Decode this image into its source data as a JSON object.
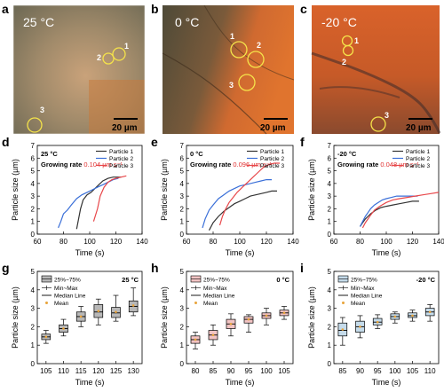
{
  "panels": {
    "a": {
      "letter": "a",
      "temp": "25 °C",
      "scalebar": "20 µm",
      "markers": [
        "1",
        "2",
        "3"
      ]
    },
    "b": {
      "letter": "b",
      "temp": "0 °C",
      "scalebar": "20 µm",
      "markers": [
        "1",
        "2",
        "3"
      ]
    },
    "c": {
      "letter": "c",
      "temp": "-20 °C",
      "scalebar": "20 µm",
      "markers": [
        "1",
        "2",
        "3"
      ]
    }
  },
  "colors": {
    "particle_1": "#333333",
    "particle_2": "#3a6fd8",
    "particle_3": "#e8474a",
    "rate_text": "#e03030",
    "box_g": "#b8b8b8",
    "box_h": "#f2c4c4",
    "box_i": "#c5dbea",
    "mean_dot": "#e8a33a"
  },
  "chart_data": [
    {
      "id": "d",
      "letter": "d",
      "type": "line",
      "corner_label": "25 °C",
      "rate_label": "Growing rate ",
      "rate_value": "0.104 µm s⁻¹",
      "xlabel": "Time (s)",
      "ylabel": "Particle size (µm)",
      "xlim": [
        60,
        140
      ],
      "ylim": [
        0,
        7
      ],
      "xticks": [
        60,
        80,
        100,
        120,
        140
      ],
      "yticks": [
        0,
        1,
        2,
        3,
        4,
        5,
        6,
        7
      ],
      "legend_position": "top-right",
      "series": [
        {
          "name": "Particle 1",
          "color": "#333333",
          "x": [
            90,
            93,
            95,
            98,
            101,
            104,
            107,
            110,
            114,
            118,
            121,
            124
          ],
          "y": [
            0.4,
            2.0,
            2.7,
            3.1,
            3.3,
            3.6,
            3.9,
            4.2,
            4.4,
            4.5,
            4.5,
            4.5
          ]
        },
        {
          "name": "Particle 2",
          "color": "#3a6fd8",
          "x": [
            76,
            78,
            80,
            83,
            86,
            90,
            94,
            98,
            102,
            106,
            110,
            114,
            118,
            122
          ],
          "y": [
            0.5,
            1.0,
            1.6,
            1.9,
            2.3,
            2.8,
            3.1,
            3.3,
            3.5,
            3.7,
            3.9,
            4.1,
            4.3,
            4.4
          ]
        },
        {
          "name": "Particle 3",
          "color": "#e8474a",
          "x": [
            103,
            106,
            108,
            111,
            114,
            117,
            120,
            124,
            128
          ],
          "y": [
            1.0,
            2.0,
            3.0,
            3.7,
            4.1,
            4.3,
            4.4,
            4.5,
            4.6
          ]
        }
      ]
    },
    {
      "id": "e",
      "letter": "e",
      "type": "line",
      "corner_label": "0 °C",
      "rate_label": "Growing rate ",
      "rate_value": "0.096 µm s⁻¹",
      "xlabel": "Time (s)",
      "ylabel": "Particle size (µm)",
      "xlim": [
        60,
        140
      ],
      "ylim": [
        0,
        7
      ],
      "xticks": [
        60,
        80,
        100,
        120,
        140
      ],
      "yticks": [
        0,
        1,
        2,
        3,
        4,
        5,
        6,
        7
      ],
      "legend_position": "top-right",
      "series": [
        {
          "name": "Particle 1",
          "color": "#333333",
          "x": [
            77,
            80,
            84,
            88,
            92,
            96,
            100,
            104,
            108,
            112,
            116,
            120,
            124,
            128
          ],
          "y": [
            0.3,
            0.9,
            1.4,
            1.8,
            2.1,
            2.4,
            2.6,
            2.8,
            3.0,
            3.1,
            3.2,
            3.3,
            3.4,
            3.4
          ]
        },
        {
          "name": "Particle 2",
          "color": "#3a6fd8",
          "x": [
            72,
            74,
            77,
            80,
            84,
            88,
            92,
            96,
            100,
            104,
            108,
            112,
            116,
            120,
            124
          ],
          "y": [
            0.5,
            1.2,
            1.9,
            2.3,
            2.8,
            3.1,
            3.4,
            3.6,
            3.8,
            3.9,
            4.0,
            4.1,
            4.2,
            4.3,
            4.3
          ]
        },
        {
          "name": "Particle 3",
          "color": "#e8474a",
          "x": [
            85,
            87,
            89,
            92,
            95,
            98,
            102,
            106,
            110,
            114,
            118,
            122,
            126,
            130
          ],
          "y": [
            0.7,
            1.4,
            1.9,
            2.5,
            2.9,
            3.3,
            3.7,
            4.1,
            4.5,
            4.9,
            5.3,
            5.5,
            5.6,
            5.6
          ]
        }
      ]
    },
    {
      "id": "f",
      "letter": "f",
      "type": "line",
      "corner_label": "-20 °C",
      "rate_label": "Growing rate ",
      "rate_value": "0.048 µm s⁻¹",
      "xlabel": "Time (s)",
      "ylabel": "Particle size (µm)",
      "xlim": [
        60,
        140
      ],
      "ylim": [
        0,
        7
      ],
      "xticks": [
        60,
        80,
        100,
        120,
        140
      ],
      "yticks": [
        0,
        1,
        2,
        3,
        4,
        5,
        6,
        7
      ],
      "legend_position": "top-right",
      "series": [
        {
          "name": "Particle 1",
          "color": "#333333",
          "x": [
            80,
            82,
            84,
            86,
            88,
            92,
            96,
            100,
            105,
            110,
            115,
            120,
            125
          ],
          "y": [
            0.6,
            0.9,
            1.2,
            1.4,
            1.6,
            1.9,
            2.1,
            2.2,
            2.3,
            2.4,
            2.5,
            2.6,
            2.6
          ]
        },
        {
          "name": "Particle 2",
          "color": "#3a6fd8",
          "x": [
            80,
            82,
            84,
            86,
            88,
            91,
            94,
            97,
            100,
            104,
            108,
            112,
            116,
            120,
            124
          ],
          "y": [
            0.6,
            1.0,
            1.4,
            1.7,
            2.0,
            2.3,
            2.5,
            2.7,
            2.8,
            2.9,
            3.0,
            3.0,
            3.0,
            3.0,
            3.0
          ]
        },
        {
          "name": "Particle 3",
          "color": "#e8474a",
          "x": [
            82,
            84,
            86,
            88,
            91,
            95,
            100,
            105,
            110,
            116,
            122,
            128,
            134,
            140
          ],
          "y": [
            0.5,
            0.9,
            1.2,
            1.5,
            1.9,
            2.2,
            2.5,
            2.7,
            2.8,
            2.9,
            3.0,
            3.1,
            3.2,
            3.3
          ]
        }
      ]
    },
    {
      "id": "g",
      "letter": "g",
      "type": "box",
      "corner_label": "25 °C",
      "legend": [
        "25%~75%",
        "Min~Max",
        "Median Line",
        "Mean"
      ],
      "xlabel": "Time (s)",
      "ylabel": "Particle size (µm)",
      "ylim": [
        0,
        5
      ],
      "yticks": [
        0,
        1,
        2,
        3,
        4,
        5
      ],
      "categories": [
        "105",
        "110",
        "115",
        "120",
        "125",
        "130"
      ],
      "box_color": "#b8b8b8",
      "boxes": [
        {
          "min": 1.1,
          "q1": 1.3,
          "median": 1.45,
          "q3": 1.6,
          "max": 1.8,
          "mean": 1.45
        },
        {
          "min": 1.5,
          "q1": 1.7,
          "median": 1.9,
          "q3": 2.1,
          "max": 2.4,
          "mean": 1.9
        },
        {
          "min": 2.0,
          "q1": 2.3,
          "median": 2.55,
          "q3": 2.8,
          "max": 3.1,
          "mean": 2.55
        },
        {
          "min": 2.1,
          "q1": 2.5,
          "median": 2.8,
          "q3": 3.2,
          "max": 3.5,
          "mean": 2.85
        },
        {
          "min": 2.3,
          "q1": 2.5,
          "median": 2.75,
          "q3": 3.05,
          "max": 3.7,
          "mean": 2.8
        },
        {
          "min": 2.6,
          "q1": 2.8,
          "median": 3.1,
          "q3": 3.4,
          "max": 4.1,
          "mean": 3.15
        }
      ]
    },
    {
      "id": "h",
      "letter": "h",
      "type": "box",
      "corner_label": "0 °C",
      "legend": [
        "25%~75%",
        "Min~Max",
        "Median Line",
        "Mean"
      ],
      "xlabel": "Time (s)",
      "ylabel": "Particle size (µm)",
      "ylim": [
        0,
        5
      ],
      "yticks": [
        0,
        1,
        2,
        3,
        4,
        5
      ],
      "categories": [
        "80",
        "85",
        "90",
        "95",
        "100",
        "105"
      ],
      "box_color": "#f2c4c4",
      "boxes": [
        {
          "min": 0.8,
          "q1": 1.1,
          "median": 1.3,
          "q3": 1.5,
          "max": 1.7,
          "mean": 1.3
        },
        {
          "min": 1.0,
          "q1": 1.3,
          "median": 1.55,
          "q3": 1.8,
          "max": 2.1,
          "mean": 1.55
        },
        {
          "min": 1.5,
          "q1": 1.9,
          "median": 2.15,
          "q3": 2.4,
          "max": 2.7,
          "mean": 2.15
        },
        {
          "min": 1.7,
          "q1": 2.2,
          "median": 2.4,
          "q3": 2.55,
          "max": 2.65,
          "mean": 2.4
        },
        {
          "min": 2.1,
          "q1": 2.45,
          "median": 2.6,
          "q3": 2.75,
          "max": 3.0,
          "mean": 2.6
        },
        {
          "min": 2.4,
          "q1": 2.6,
          "median": 2.75,
          "q3": 2.9,
          "max": 3.1,
          "mean": 2.75
        }
      ]
    },
    {
      "id": "i",
      "letter": "i",
      "type": "box",
      "corner_label": "-20 °C",
      "legend": [
        "25%~75%",
        "Min~Max",
        "Median Line",
        "Mean"
      ],
      "xlabel": "Time (s)",
      "ylabel": "Particle size (µm)",
      "ylim": [
        0,
        5
      ],
      "yticks": [
        0,
        1,
        2,
        3,
        4,
        5
      ],
      "categories": [
        "85",
        "90",
        "95",
        "100",
        "105",
        "110"
      ],
      "box_color": "#c5dbea",
      "boxes": [
        {
          "min": 1.0,
          "q1": 1.5,
          "median": 1.8,
          "q3": 2.2,
          "max": 2.5,
          "mean": 1.85
        },
        {
          "min": 1.4,
          "q1": 1.7,
          "median": 2.0,
          "q3": 2.3,
          "max": 2.6,
          "mean": 2.0
        },
        {
          "min": 1.9,
          "q1": 2.1,
          "median": 2.25,
          "q3": 2.45,
          "max": 2.65,
          "mean": 2.25
        },
        {
          "min": 2.2,
          "q1": 2.4,
          "median": 2.55,
          "q3": 2.7,
          "max": 2.8,
          "mean": 2.55
        },
        {
          "min": 2.3,
          "q1": 2.5,
          "median": 2.6,
          "q3": 2.75,
          "max": 2.9,
          "mean": 2.6
        },
        {
          "min": 2.3,
          "q1": 2.6,
          "median": 2.8,
          "q3": 3.0,
          "max": 3.2,
          "mean": 2.8
        }
      ]
    }
  ]
}
